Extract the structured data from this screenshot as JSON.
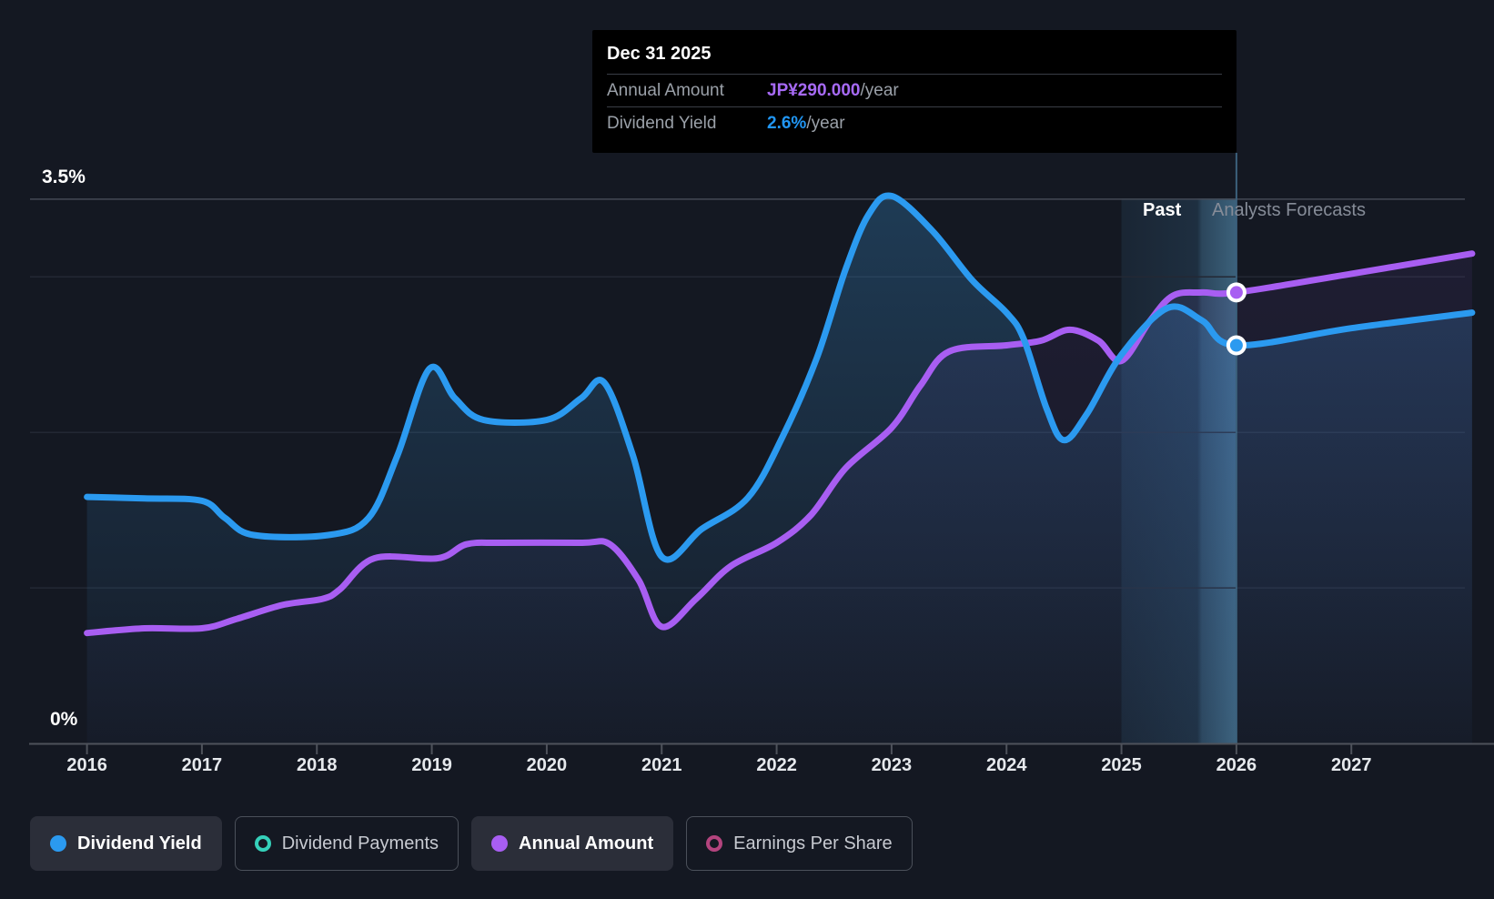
{
  "page": {
    "background": "#141822"
  },
  "tooltip": {
    "date": "Dec 31 2025",
    "rows": [
      {
        "label": "Annual Amount",
        "value": "JP¥290.000",
        "suffix": "/year",
        "color": "#a76af5"
      },
      {
        "label": "Dividend Yield",
        "value": "2.6%",
        "suffix": "/year",
        "color": "#2196f3"
      }
    ]
  },
  "labels": {
    "past": "Past",
    "forecast": "Analysts Forecasts",
    "y_top": "3.5%",
    "y_bottom": "0%"
  },
  "x_axis": {
    "years": [
      "2016",
      "2017",
      "2018",
      "2019",
      "2020",
      "2021",
      "2022",
      "2023",
      "2024",
      "2025",
      "2026",
      "2027"
    ]
  },
  "legend": [
    {
      "label": "Dividend Yield",
      "color": "#2b9af0",
      "variant": "filled",
      "active": true
    },
    {
      "label": "Dividend Payments",
      "color": "#35d0ba",
      "variant": "hollow",
      "active": false
    },
    {
      "label": "Annual Amount",
      "color": "#a85ef2",
      "variant": "filled",
      "active": true
    },
    {
      "label": "Earnings Per Share",
      "color": "#b4447e",
      "variant": "hollow",
      "active": false
    }
  ],
  "chart_data": {
    "type": "line",
    "x_range": [
      2016.0,
      2028.05
    ],
    "x_tick_years": [
      2016,
      2017,
      2018,
      2019,
      2020,
      2021,
      2022,
      2023,
      2024,
      2025,
      2026,
      2027
    ],
    "y_axis": {
      "unit": "%",
      "min": 0,
      "max": 3.5,
      "gridlines": [
        1,
        2,
        3
      ],
      "top_line": 3.5,
      "label_top": "3.5%",
      "label_bottom": "0%"
    },
    "divider": {
      "date": "Dec 31 2025",
      "x_year": 2026.0,
      "band_start_year": 2025.0
    },
    "series": [
      {
        "name": "Dividend Yield",
        "color": "#2b9af0",
        "unit": "percent",
        "points": [
          [
            2016.0,
            1.585
          ],
          [
            2016.5,
            1.575
          ],
          [
            2017.0,
            1.56
          ],
          [
            2017.2,
            1.45
          ],
          [
            2017.45,
            1.34
          ],
          [
            2018.1,
            1.34
          ],
          [
            2018.45,
            1.45
          ],
          [
            2018.7,
            1.85
          ],
          [
            2018.98,
            2.41
          ],
          [
            2019.2,
            2.22
          ],
          [
            2019.45,
            2.08
          ],
          [
            2020.0,
            2.08
          ],
          [
            2020.3,
            2.22
          ],
          [
            2020.5,
            2.32
          ],
          [
            2020.75,
            1.85
          ],
          [
            2021.0,
            1.2
          ],
          [
            2021.35,
            1.38
          ],
          [
            2021.75,
            1.58
          ],
          [
            2022.05,
            1.97
          ],
          [
            2022.35,
            2.48
          ],
          [
            2022.6,
            3.05
          ],
          [
            2022.8,
            3.4
          ],
          [
            2023.0,
            3.52
          ],
          [
            2023.35,
            3.3
          ],
          [
            2023.7,
            2.98
          ],
          [
            2024.0,
            2.77
          ],
          [
            2024.15,
            2.6
          ],
          [
            2024.35,
            2.15
          ],
          [
            2024.5,
            1.95
          ],
          [
            2024.7,
            2.12
          ],
          [
            2025.0,
            2.5
          ],
          [
            2025.4,
            2.8
          ],
          [
            2025.7,
            2.72
          ],
          [
            2026.0,
            2.56
          ],
          [
            2027.0,
            2.67
          ],
          [
            2028.05,
            2.77
          ]
        ]
      },
      {
        "name": "Annual Amount",
        "color": "#a85ef2",
        "unit": "JPY_per_year",
        "axis_note": "plotted as value/100 on the percent axis",
        "points": [
          [
            2016.0,
            71
          ],
          [
            2016.5,
            74
          ],
          [
            2017.0,
            74
          ],
          [
            2017.3,
            80
          ],
          [
            2017.7,
            89
          ],
          [
            2018.05,
            93
          ],
          [
            2018.2,
            99
          ],
          [
            2018.5,
            119
          ],
          [
            2019.05,
            119
          ],
          [
            2019.3,
            128
          ],
          [
            2019.6,
            129
          ],
          [
            2020.3,
            129
          ],
          [
            2020.55,
            128
          ],
          [
            2020.8,
            105
          ],
          [
            2021.0,
            75
          ],
          [
            2021.3,
            93
          ],
          [
            2021.6,
            114
          ],
          [
            2022.0,
            129
          ],
          [
            2022.3,
            147
          ],
          [
            2022.6,
            177
          ],
          [
            2023.0,
            203
          ],
          [
            2023.25,
            230
          ],
          [
            2023.5,
            252
          ],
          [
            2024.0,
            256
          ],
          [
            2024.3,
            259
          ],
          [
            2024.55,
            266
          ],
          [
            2024.8,
            259
          ],
          [
            2025.0,
            246
          ],
          [
            2025.25,
            272
          ],
          [
            2025.45,
            288
          ],
          [
            2025.7,
            290
          ],
          [
            2026.0,
            290
          ],
          [
            2027.0,
            302
          ],
          [
            2028.05,
            315
          ]
        ]
      }
    ],
    "markers": [
      {
        "series": "Dividend Yield",
        "year": 2026.0,
        "display": "2.6%"
      },
      {
        "series": "Annual Amount",
        "year": 2026.0,
        "display": "JP¥290.000"
      }
    ],
    "legend_position": "bottom",
    "grid": true
  },
  "colors": {
    "band": "#4f9fd4",
    "crosshair": "#3b607b",
    "gridline": "#232834",
    "top_gridline": "#434854",
    "axis": "#4e525b",
    "blue_fill": "#3585c0",
    "purple_fill": "#8a55d6"
  }
}
